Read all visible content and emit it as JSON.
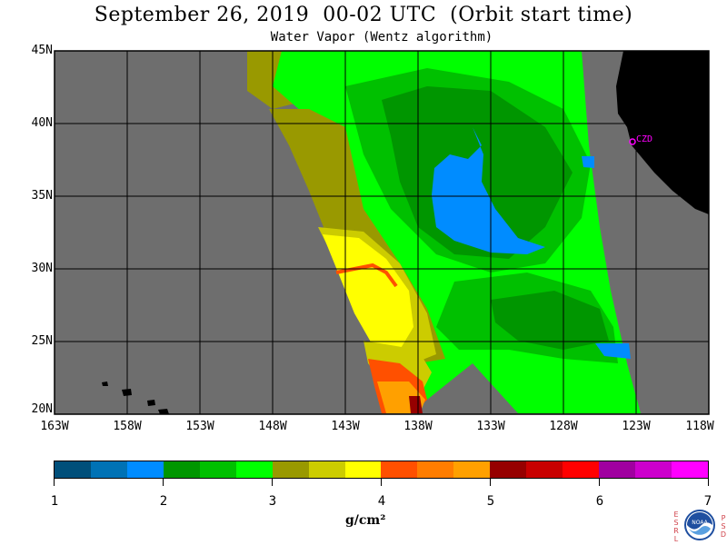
{
  "header": {
    "title": "September 26, 2019  00-02 UTC  (Orbit start time)",
    "subtitle": "Water Vapor (Wentz algorithm)"
  },
  "map": {
    "lat_labels": [
      "45N",
      "40N",
      "35N",
      "30N",
      "25N",
      "20N"
    ],
    "lon_labels": [
      "163W",
      "158W",
      "153W",
      "148W",
      "143W",
      "138W",
      "133W",
      "128W",
      "123W",
      "118W"
    ],
    "lat_range": [
      20,
      45
    ],
    "lon_range": [
      -163,
      -118
    ],
    "station_label": "CZD",
    "colors": {
      "no_data": "#6e6e6e",
      "land": "#000000",
      "grid": "#000000",
      "station": "#ff00ff"
    }
  },
  "colorbar": {
    "ticks": [
      "1",
      "2",
      "3",
      "4",
      "5",
      "6",
      "7"
    ],
    "units": "g/cm²",
    "range": [
      1,
      7
    ],
    "colors": [
      "#004f7a",
      "#0072b5",
      "#008cff",
      "#009600",
      "#00c000",
      "#00ff00",
      "#999900",
      "#cccc00",
      "#ffff00",
      "#ff5000",
      "#ff7d00",
      "#ffa000",
      "#960000",
      "#c80000",
      "#ff0000",
      "#a000a0",
      "#cc00cc",
      "#ff00ff"
    ]
  },
  "logo": {
    "left_letters": [
      "E",
      "S",
      "R",
      "L"
    ],
    "right_letters": [
      "P",
      "S",
      "D"
    ],
    "name": "NOAA"
  }
}
